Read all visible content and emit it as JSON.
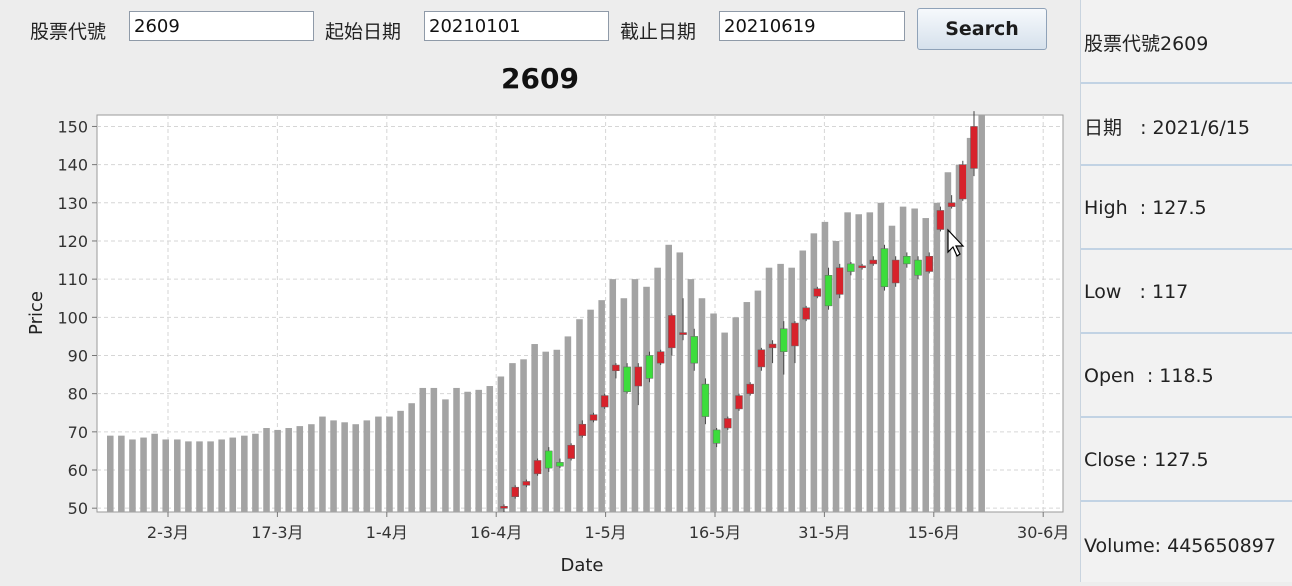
{
  "form": {
    "symbol_label": "股票代號",
    "symbol_value": "2609",
    "start_label": "起始日期",
    "start_value": "20210101",
    "end_label": "截止日期",
    "end_value": "20210619",
    "search_label": "Search"
  },
  "chart_data": {
    "type": "candlestick",
    "title": "2609",
    "xlabel": "Date",
    "ylabel": "Price",
    "ylim": [
      49,
      153
    ],
    "yticks": [
      50,
      60,
      70,
      80,
      90,
      100,
      110,
      120,
      130,
      140,
      150
    ],
    "xtick_labels": [
      "2-3月",
      "17-3月",
      "1-4月",
      "16-4月",
      "1-5月",
      "16-5月",
      "31-5月",
      "15-6月",
      "30-6月"
    ],
    "grid": true,
    "volume_bars": [
      69,
      69,
      68,
      68.5,
      69.5,
      68,
      68,
      67.5,
      67.5,
      67.5,
      68,
      68.5,
      69,
      69.5,
      71,
      70.5,
      71,
      71.5,
      72,
      74,
      73,
      72.5,
      72,
      73,
      74,
      74,
      75.5,
      77.5,
      81.5,
      81.5,
      78.5,
      81.5,
      80.5,
      81,
      82,
      84.5,
      88,
      89,
      93,
      91,
      91.5,
      95,
      99.5,
      102,
      104.5,
      110,
      105,
      110,
      108,
      113,
      119,
      117,
      110,
      105,
      101,
      96,
      100,
      104,
      107,
      113,
      114,
      113,
      117.5,
      122,
      125,
      120,
      127.5,
      127,
      127.5,
      130,
      124,
      129,
      128.5,
      126,
      130,
      138,
      140,
      147,
      153
    ],
    "candles": [
      {
        "o": 50,
        "h": 51,
        "l": 49,
        "c": 50.5,
        "dir": "up"
      },
      {
        "o": 53,
        "h": 56,
        "l": 52.5,
        "c": 55.5,
        "dir": "up"
      },
      {
        "o": 56,
        "h": 57.5,
        "l": 55.5,
        "c": 57,
        "dir": "up"
      },
      {
        "o": 59,
        "h": 63,
        "l": 58.5,
        "c": 62.5,
        "dir": "up"
      },
      {
        "o": 60.5,
        "h": 66,
        "l": 59.5,
        "c": 65,
        "dir": "down"
      },
      {
        "o": 62,
        "h": 63,
        "l": 60.5,
        "c": 61,
        "dir": "down"
      },
      {
        "o": 63,
        "h": 67,
        "l": 62.5,
        "c": 66.5,
        "dir": "up"
      },
      {
        "o": 69,
        "h": 73,
        "l": 68.5,
        "c": 72,
        "dir": "up"
      },
      {
        "o": 73,
        "h": 75,
        "l": 72.5,
        "c": 74.5,
        "dir": "up"
      },
      {
        "o": 76.5,
        "h": 80,
        "l": 76,
        "c": 79.5,
        "dir": "up"
      },
      {
        "o": 86,
        "h": 88,
        "l": 84,
        "c": 87.5,
        "dir": "up"
      },
      {
        "o": 87,
        "h": 88,
        "l": 80,
        "c": 80.5,
        "dir": "down"
      },
      {
        "o": 82,
        "h": 88,
        "l": 77,
        "c": 87,
        "dir": "up"
      },
      {
        "o": 90,
        "h": 91,
        "l": 83,
        "c": 84,
        "dir": "down"
      },
      {
        "o": 88,
        "h": 91.5,
        "l": 87.5,
        "c": 91,
        "dir": "up"
      },
      {
        "o": 92,
        "h": 101,
        "l": 90,
        "c": 100.5,
        "dir": "up"
      },
      {
        "o": 96,
        "h": 105,
        "l": 94,
        "c": 96,
        "dir": "up"
      },
      {
        "o": 95,
        "h": 97,
        "l": 86,
        "c": 88,
        "dir": "down"
      },
      {
        "o": 82.5,
        "h": 84,
        "l": 72,
        "c": 74,
        "dir": "down"
      },
      {
        "o": 70.5,
        "h": 71,
        "l": 66,
        "c": 67,
        "dir": "down"
      },
      {
        "o": 71,
        "h": 74,
        "l": 70.5,
        "c": 73.5,
        "dir": "up"
      },
      {
        "o": 76,
        "h": 80,
        "l": 75.5,
        "c": 79.5,
        "dir": "up"
      },
      {
        "o": 80,
        "h": 83,
        "l": 79.5,
        "c": 82.5,
        "dir": "up"
      },
      {
        "o": 87,
        "h": 92,
        "l": 86,
        "c": 91.5,
        "dir": "up"
      },
      {
        "o": 92,
        "h": 94,
        "l": 88,
        "c": 93,
        "dir": "up"
      },
      {
        "o": 97,
        "h": 99,
        "l": 85,
        "c": 91,
        "dir": "down"
      },
      {
        "o": 92.5,
        "h": 99,
        "l": 88,
        "c": 98.5,
        "dir": "up"
      },
      {
        "o": 99.5,
        "h": 103,
        "l": 99,
        "c": 102.5,
        "dir": "up"
      },
      {
        "o": 105.5,
        "h": 108,
        "l": 105,
        "c": 107.5,
        "dir": "up"
      },
      {
        "o": 111,
        "h": 113,
        "l": 102,
        "c": 103,
        "dir": "down"
      },
      {
        "o": 106,
        "h": 114,
        "l": 105,
        "c": 113,
        "dir": "up"
      },
      {
        "o": 114,
        "h": 114.5,
        "l": 111,
        "c": 112,
        "dir": "down"
      },
      {
        "o": 113,
        "h": 114,
        "l": 112.5,
        "c": 113.5,
        "dir": "up"
      },
      {
        "o": 114,
        "h": 116,
        "l": 113.5,
        "c": 115,
        "dir": "up"
      },
      {
        "o": 118,
        "h": 119,
        "l": 107,
        "c": 108,
        "dir": "down"
      },
      {
        "o": 109,
        "h": 116,
        "l": 108,
        "c": 115,
        "dir": "up"
      },
      {
        "o": 116,
        "h": 117,
        "l": 113,
        "c": 114,
        "dir": "down"
      },
      {
        "o": 115,
        "h": 116,
        "l": 110,
        "c": 111,
        "dir": "down"
      },
      {
        "o": 112,
        "h": 117,
        "l": 111.5,
        "c": 116,
        "dir": "up"
      },
      {
        "o": 123,
        "h": 129,
        "l": 122.5,
        "c": 128,
        "dir": "up"
      },
      {
        "o": 129,
        "h": 132,
        "l": 128.5,
        "c": 130,
        "dir": "up"
      },
      {
        "o": 131,
        "h": 141,
        "l": 130.5,
        "c": 140,
        "dir": "up"
      },
      {
        "o": 139,
        "h": 154,
        "l": 137,
        "c": 150,
        "dir": "up"
      }
    ]
  },
  "info": {
    "symbol": "股票代號2609",
    "date": "日期   : 2021/6/15",
    "high": "High  : 127.5",
    "low": "Low   : 117",
    "open": "Open  : 118.5",
    "close": "Close : 127.5",
    "volume": "Volume: 445650897"
  },
  "colors": {
    "up": "#d7222b",
    "down": "#3cdd3c",
    "volume": "#a3a3a3",
    "grid": "#d6d6d6"
  }
}
